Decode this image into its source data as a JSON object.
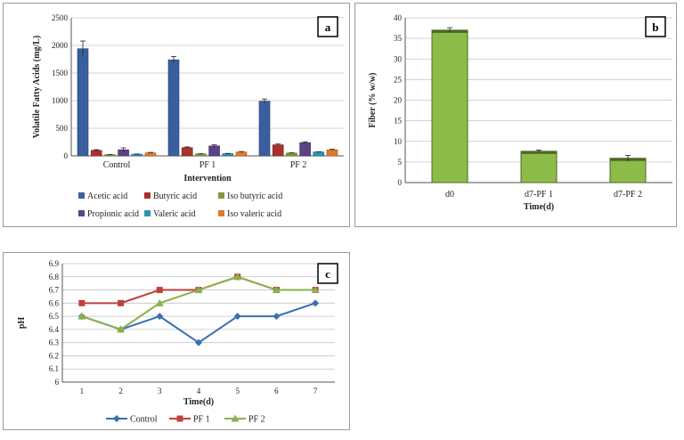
{
  "chart_data": [
    {
      "panel": "a",
      "type": "bar",
      "categories": [
        "Control",
        "PF 1",
        "PF 2"
      ],
      "series": [
        {
          "name": "Acetic acid",
          "values": [
            1940,
            1740,
            990
          ],
          "errors": [
            140,
            60,
            40
          ],
          "color": "#3a5f9e"
        },
        {
          "name": "Butyric acid",
          "values": [
            100,
            150,
            200
          ],
          "errors": [
            12,
            12,
            15
          ],
          "color": "#a8322f"
        },
        {
          "name": "Iso butyric acid",
          "values": [
            20,
            35,
            50
          ],
          "errors": [
            5,
            5,
            6
          ],
          "color": "#7f9a3a"
        },
        {
          "name": "Propionic acid",
          "values": [
            110,
            180,
            240
          ],
          "errors": [
            35,
            20,
            15
          ],
          "color": "#5b4386"
        },
        {
          "name": "Valeric acid",
          "values": [
            30,
            40,
            70
          ],
          "errors": [
            5,
            5,
            6
          ],
          "color": "#2f93b0"
        },
        {
          "name": "Iso valeric acid",
          "values": [
            55,
            70,
            110
          ],
          "errors": [
            8,
            8,
            10
          ],
          "color": "#e07b2c"
        }
      ],
      "ylim": [
        0,
        2500
      ],
      "yticks": [
        "0",
        "500",
        "1000",
        "1500",
        "2000",
        "2500"
      ],
      "xlabel": "Intervention",
      "ylabel": "Volatile Fatty Acids (mg/L)",
      "grid": true,
      "legend": "bottom"
    },
    {
      "panel": "b",
      "type": "bar",
      "categories": [
        "d0",
        "d7-PF 1",
        "d7-PF 2"
      ],
      "series": [
        {
          "name": "",
          "values": [
            37.0,
            7.6,
            5.9
          ],
          "errors": [
            0.6,
            0.3,
            0.7
          ],
          "color": "#8dbb47"
        }
      ],
      "ylim": [
        0,
        40
      ],
      "yticks": [
        "0",
        "5",
        "10",
        "15",
        "20",
        "25",
        "30",
        "35",
        "40"
      ],
      "xlabel": "Time(d)",
      "ylabel": "Fiber (% w/w)",
      "grid": true,
      "legend": "none"
    },
    {
      "panel": "c",
      "type": "line",
      "x": [
        1,
        2,
        3,
        4,
        5,
        6,
        7
      ],
      "xticks": [
        "1",
        "2",
        "3",
        "4",
        "5",
        "6",
        "7"
      ],
      "series": [
        {
          "name": "Control",
          "values": [
            6.5,
            6.4,
            6.5,
            6.3,
            6.5,
            6.5,
            6.6
          ],
          "color": "#3a6fb0",
          "marker": "diamond"
        },
        {
          "name": "PF 1",
          "values": [
            6.6,
            6.6,
            6.7,
            6.7,
            6.8,
            6.7,
            6.7
          ],
          "color": "#c0403c",
          "marker": "square"
        },
        {
          "name": "PF 2",
          "values": [
            6.5,
            6.4,
            6.6,
            6.7,
            6.8,
            6.7,
            6.7
          ],
          "color": "#8bb14a",
          "marker": "triangle"
        }
      ],
      "ylim": [
        6,
        6.9
      ],
      "yticks": [
        "6",
        "6.1",
        "6.2",
        "6.3",
        "6.4",
        "6.5",
        "6.6",
        "6.7",
        "6.8",
        "6.9"
      ],
      "xlabel": "Time(d)",
      "ylabel": "pH",
      "grid": true,
      "legend": "bottom"
    }
  ]
}
